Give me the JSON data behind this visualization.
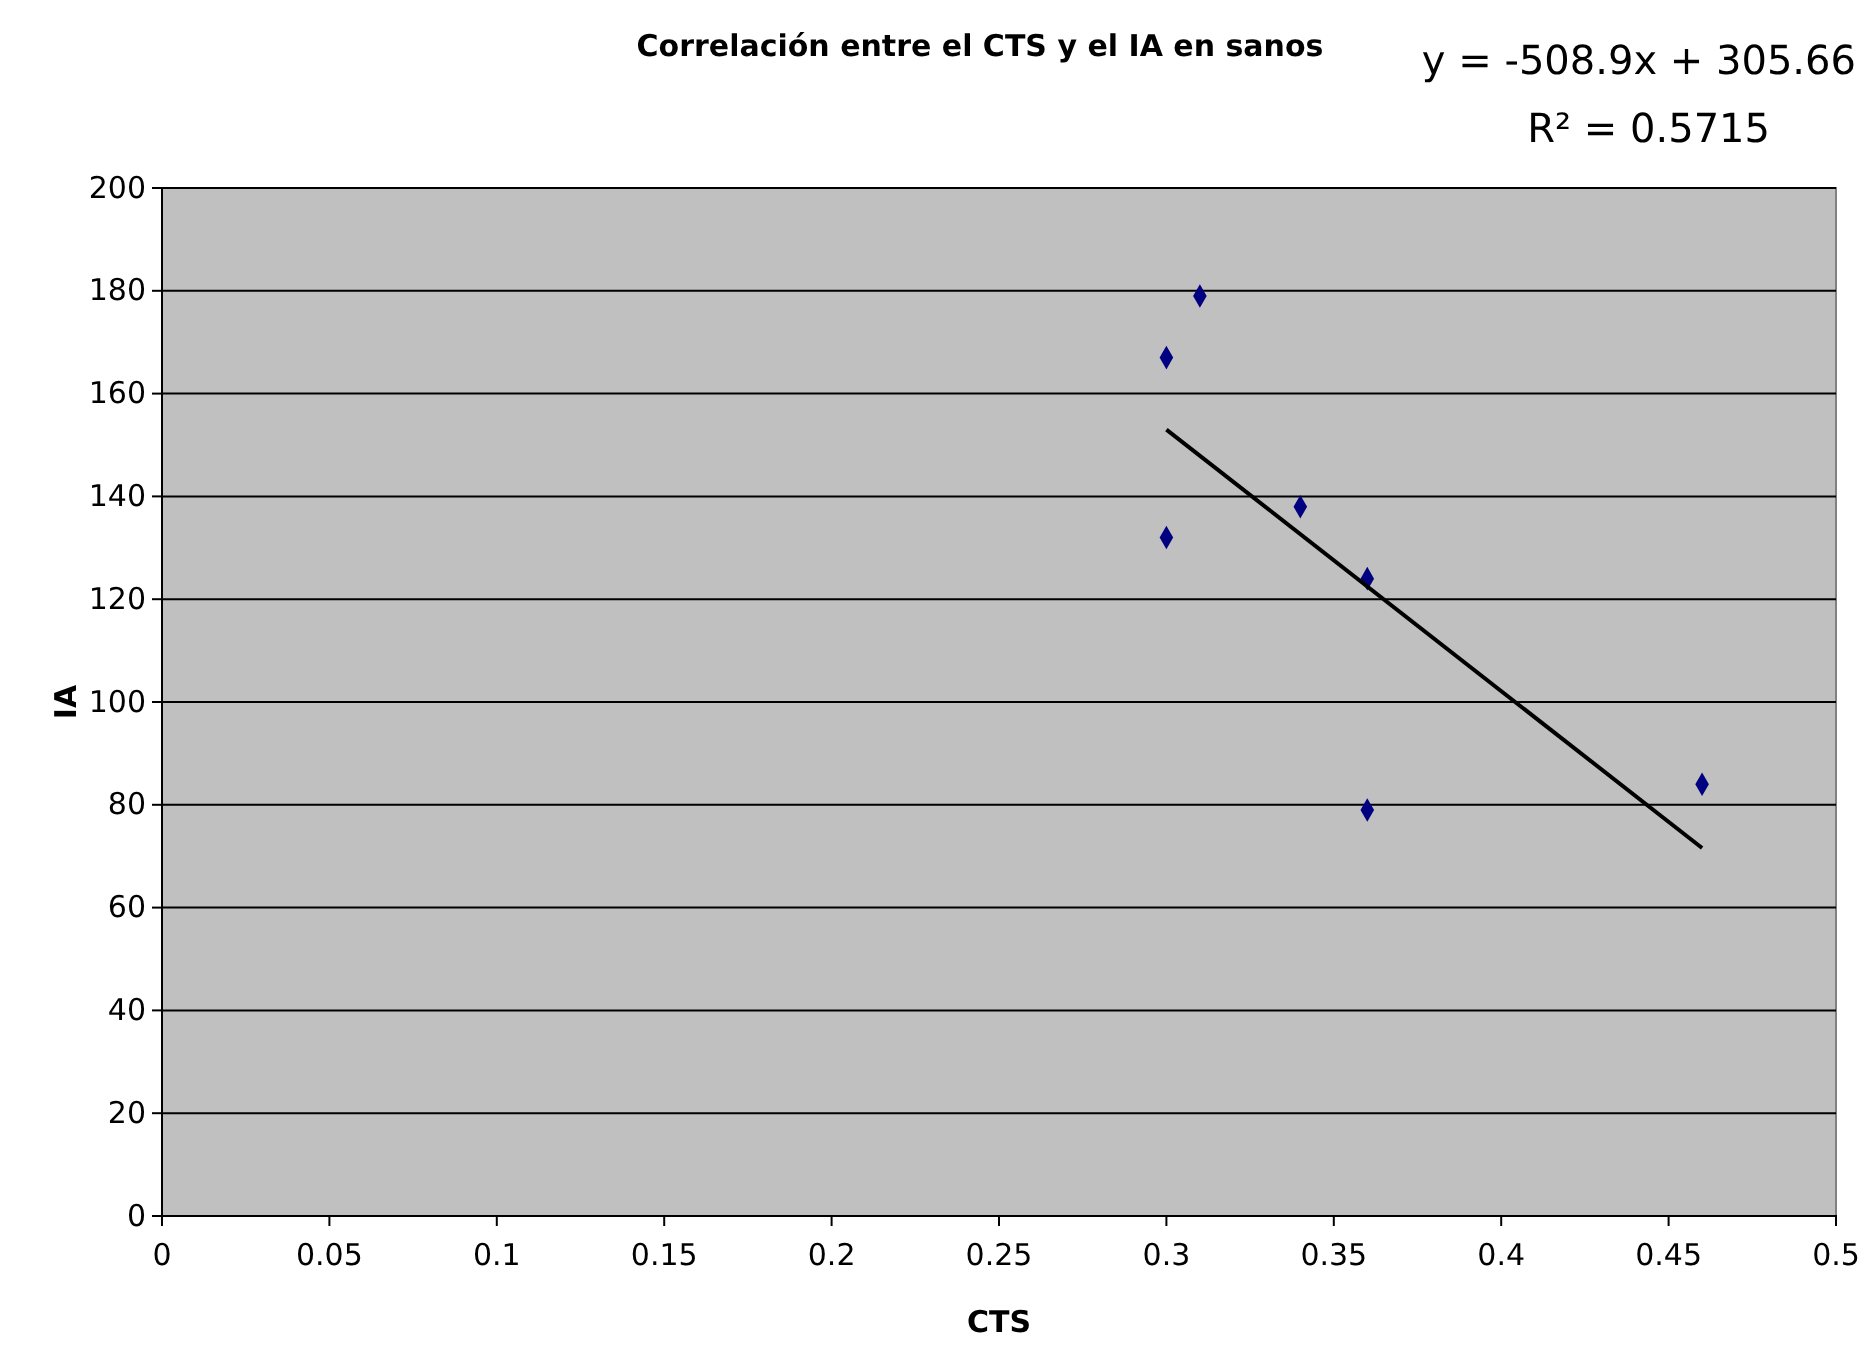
{
  "chart_data": {
    "type": "scatter",
    "title": "Correlación entre el CTS y el IA en sanos",
    "xlabel": "CTS",
    "ylabel": "IA",
    "annotations": [
      "y = -508.9x + 305.66",
      "R² = 0.5715"
    ],
    "xlim": [
      0,
      0.5
    ],
    "xticks": [
      0,
      0.05,
      0.1,
      0.15,
      0.2,
      0.25,
      0.3,
      0.35,
      0.4,
      0.45,
      0.5
    ],
    "ylim": [
      0,
      200
    ],
    "yticks": [
      0,
      20,
      40,
      60,
      80,
      100,
      120,
      140,
      160,
      180,
      200
    ],
    "grid": "y",
    "marker": "diamond",
    "series": [
      {
        "color": "#000080",
        "x": [
          0.3,
          0.31,
          0.3,
          0.34,
          0.36,
          0.36,
          0.46
        ],
        "values": [
          167,
          179,
          132,
          138,
          124,
          79,
          84
        ]
      },
      {
        "type": "line",
        "color": "#000000",
        "x": [
          0.3,
          0.46
        ],
        "values": [
          153,
          71.6
        ],
        "marker": "none",
        "line_style": "solid"
      }
    ]
  }
}
